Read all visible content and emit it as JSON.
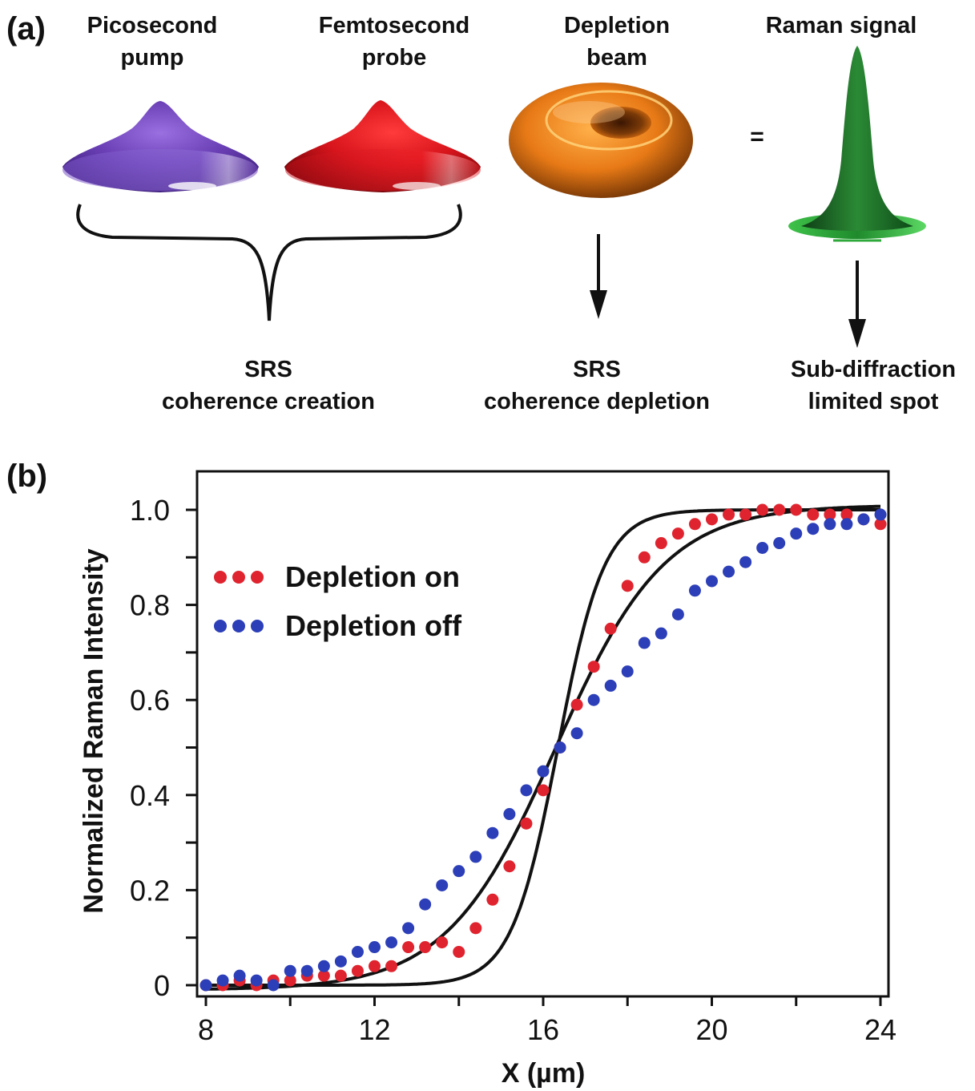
{
  "panel_a": {
    "label": "(a)",
    "beams": [
      {
        "title_line1": "Picosecond",
        "title_line2": "pump",
        "color": "#6a3fb5"
      },
      {
        "title_line1": "Femtosecond",
        "title_line2": "probe",
        "color": "#e0191f"
      },
      {
        "title_line1": "Depletion",
        "title_line2": "beam",
        "color": "#e87a16"
      },
      {
        "title_line1": "Raman signal",
        "title_line2": "",
        "color": "#1e7a2c"
      }
    ],
    "equals_sign": "=",
    "stages": [
      {
        "line1": "SRS",
        "line2": "coherence creation"
      },
      {
        "line1": "SRS",
        "line2": "coherence depletion"
      },
      {
        "line1": "Sub-diffraction",
        "line2": "limited spot"
      }
    ]
  },
  "panel_b": {
    "label": "(b)"
  },
  "chart_data": {
    "type": "scatter",
    "xlabel": "X (µm)",
    "ylabel": "Normalized Raman Intensity",
    "xlim": [
      8,
      24
    ],
    "ylim": [
      0,
      1.0
    ],
    "xticks": [
      "8",
      "12",
      "16",
      "20",
      "24"
    ],
    "yticks": [
      "0",
      "0.2",
      "0.4",
      "0.6",
      "0.8",
      "1.0"
    ],
    "legend_position": "upper-left",
    "series": [
      {
        "name": "Depletion on",
        "color": "#e0242f",
        "x": [
          8.0,
          8.4,
          8.8,
          9.2,
          9.6,
          10.0,
          10.4,
          10.8,
          11.2,
          11.6,
          12.0,
          12.4,
          12.8,
          13.2,
          13.6,
          14.0,
          14.4,
          14.8,
          15.2,
          15.6,
          16.0,
          16.4,
          16.8,
          17.2,
          17.6,
          18.0,
          18.4,
          18.8,
          19.2,
          19.6,
          20.0,
          20.4,
          20.8,
          21.2,
          21.6,
          22.0,
          22.4,
          22.8,
          23.2,
          23.6,
          24.0
        ],
        "y": [
          0.0,
          0.0,
          0.01,
          0.0,
          0.01,
          0.01,
          0.02,
          0.02,
          0.02,
          0.03,
          0.04,
          0.04,
          0.08,
          0.08,
          0.09,
          0.07,
          0.12,
          0.18,
          0.25,
          0.34,
          0.41,
          0.5,
          0.59,
          0.67,
          0.75,
          0.84,
          0.9,
          0.93,
          0.95,
          0.97,
          0.98,
          0.99,
          0.99,
          1.0,
          1.0,
          1.0,
          0.99,
          0.99,
          0.99,
          0.98,
          0.97
        ]
      },
      {
        "name": "Depletion off",
        "color": "#2c3fb8",
        "x": [
          8.0,
          8.4,
          8.8,
          9.2,
          9.6,
          10.0,
          10.4,
          10.8,
          11.2,
          11.6,
          12.0,
          12.4,
          12.8,
          13.2,
          13.6,
          14.0,
          14.4,
          14.8,
          15.2,
          15.6,
          16.0,
          16.4,
          16.8,
          17.2,
          17.6,
          18.0,
          18.4,
          18.8,
          19.2,
          19.6,
          20.0,
          20.4,
          20.8,
          21.2,
          21.6,
          22.0,
          22.4,
          22.8,
          23.2,
          23.6,
          24.0
        ],
        "y": [
          0.0,
          0.01,
          0.02,
          0.01,
          0.0,
          0.03,
          0.03,
          0.04,
          0.05,
          0.07,
          0.08,
          0.09,
          0.12,
          0.17,
          0.21,
          0.24,
          0.27,
          0.32,
          0.36,
          0.41,
          0.45,
          0.5,
          0.53,
          0.6,
          0.63,
          0.66,
          0.72,
          0.74,
          0.78,
          0.83,
          0.85,
          0.87,
          0.89,
          0.92,
          0.93,
          0.95,
          0.96,
          0.97,
          0.97,
          0.98,
          0.99
        ]
      }
    ],
    "fits": [
      {
        "series": "Depletion on",
        "color": "#111111",
        "x0": 16.35,
        "width": 0.55,
        "base": 0.0,
        "amp": 1.0
      },
      {
        "series": "Depletion off",
        "color": "#111111",
        "x0": 16.3,
        "width": 1.3,
        "base": -0.01,
        "amp": 1.02
      }
    ]
  }
}
